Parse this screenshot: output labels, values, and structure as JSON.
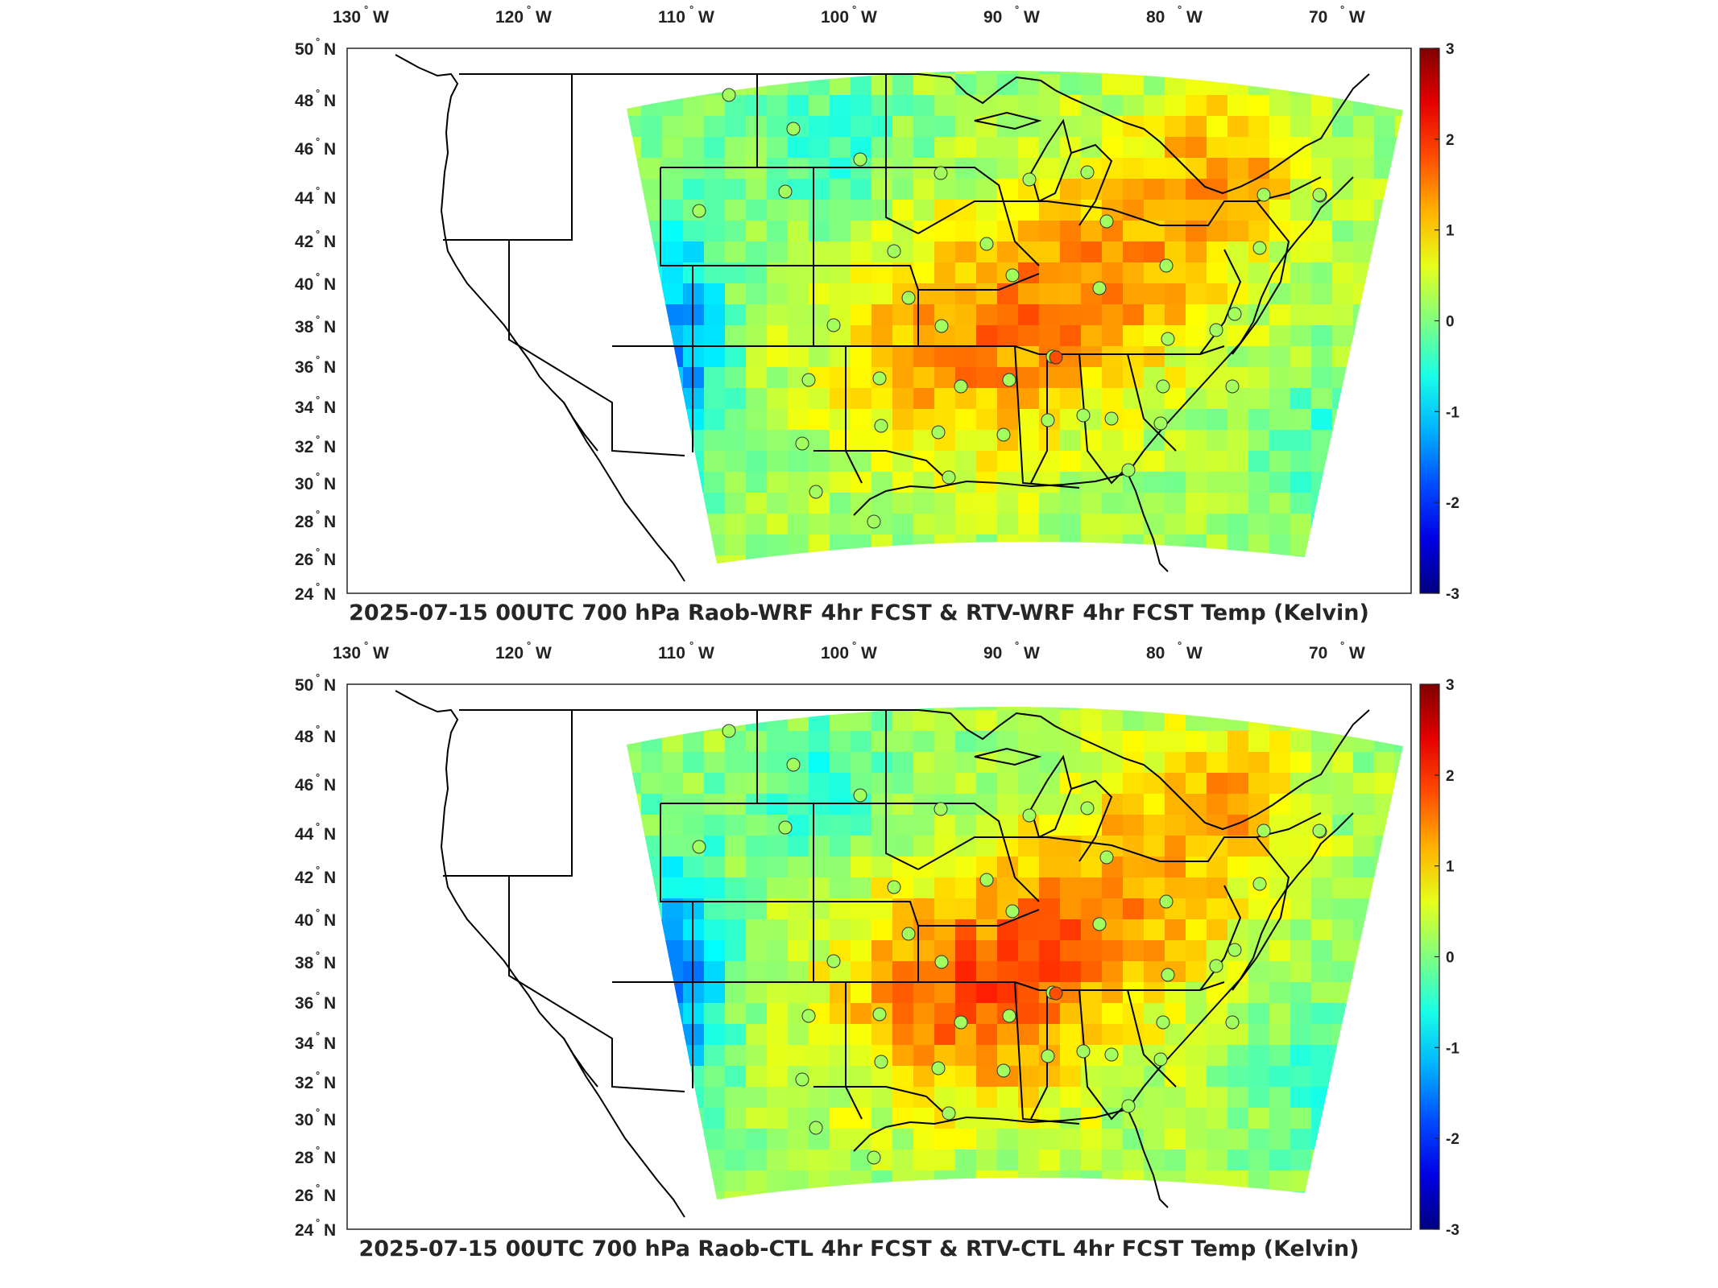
{
  "panels": [
    {
      "title": "2025-07-15 00UTC 700 hPa Raob-WRF 4hr FCST & RTV-WRF 4hr FCST Temp (Kelvin)",
      "variant": "wrf"
    },
    {
      "title": "2025-07-15 00UTC 700 hPa Raob-CTL 4hr FCST & RTV-CTL 4hr FCST Temp (Kelvin)",
      "variant": "ctl"
    }
  ],
  "lon_labels": [
    "130",
    "120",
    "110",
    "100",
    "90",
    "80",
    "70"
  ],
  "lon_hemi": "W",
  "lat_labels": [
    "50",
    "48",
    "46",
    "44",
    "42",
    "40",
    "38",
    "36",
    "34",
    "32",
    "30",
    "28",
    "26",
    "24"
  ],
  "lat_hemi": "N",
  "degree_symbol": "°",
  "colorbar": {
    "ticks": [
      "3",
      "2",
      "1",
      "0",
      "-1",
      "-2",
      "-3"
    ],
    "min": -3,
    "max": 3,
    "colormap": "jet"
  },
  "colors": {
    "frame": "#262626",
    "boundary": "#000000",
    "jet_dark_red": "#800000",
    "jet_dark_blue": "#00008f"
  }
}
